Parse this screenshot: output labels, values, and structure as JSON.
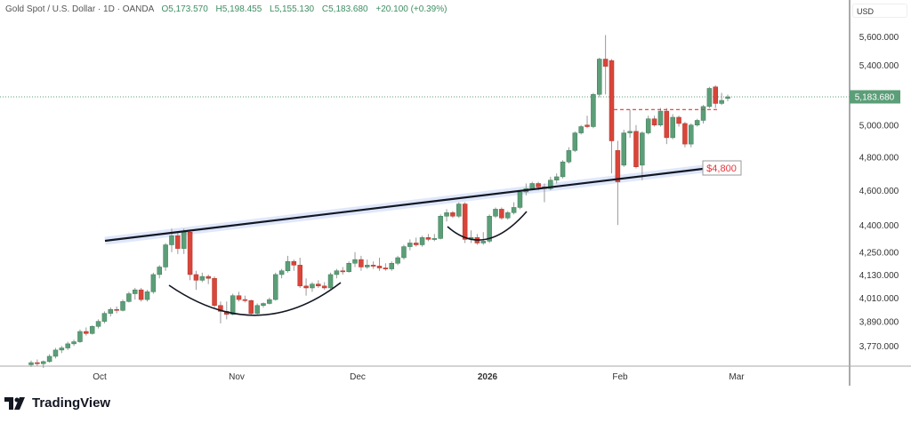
{
  "legend": {
    "symbol": "Gold Spot / U.S. Dollar · 1D · OANDA",
    "open": "O5,173.570",
    "high": "H5,198.455",
    "low": "L5,155.130",
    "close": "C5,183.680",
    "change": "+20.100 (+0.39%)"
  },
  "currency": "USD",
  "price_axis": [
    "5,600.000",
    "5,400.000",
    "5,000.000",
    "4,800.000",
    "4,600.000",
    "4,400.000",
    "4,250.000",
    "4,130.000",
    "4,010.000",
    "3,890.000",
    "3,770.000"
  ],
  "price_axis_values": [
    5600,
    5400,
    5000,
    4800,
    4600,
    4400,
    4250,
    4130,
    4010,
    3890,
    3770
  ],
  "current_price_label": "5,183.680",
  "current_price": 5183.68,
  "time_axis": [
    "Oct",
    "Nov",
    "Dec",
    "2026",
    "Feb",
    "Mar"
  ],
  "annotation_label": "$4,800",
  "resistance_level": 5100,
  "brand": "TradingView",
  "colors": {
    "up": "#5b9e78",
    "down": "#d9453a",
    "trendline": "#131722",
    "band": "#dfe7fb",
    "annotation": "#e8333a"
  },
  "chart_data": {
    "type": "candlestick",
    "title": "Gold Spot / U.S. Dollar · 1D · OANDA",
    "scale": "log",
    "ylim": [
      3680,
      5650
    ],
    "ohlc": [
      [
        3680,
        3700,
        3670,
        3690
      ],
      [
        3690,
        3705,
        3675,
        3685
      ],
      [
        3685,
        3700,
        3665,
        3695
      ],
      [
        3695,
        3730,
        3690,
        3720
      ],
      [
        3720,
        3760,
        3710,
        3750
      ],
      [
        3750,
        3770,
        3735,
        3760
      ],
      [
        3760,
        3790,
        3750,
        3780
      ],
      [
        3780,
        3800,
        3770,
        3790
      ],
      [
        3790,
        3850,
        3785,
        3840
      ],
      [
        3840,
        3860,
        3820,
        3830
      ],
      [
        3830,
        3870,
        3825,
        3865
      ],
      [
        3865,
        3900,
        3855,
        3890
      ],
      [
        3890,
        3940,
        3880,
        3930
      ],
      [
        3930,
        3960,
        3915,
        3950
      ],
      [
        3950,
        3965,
        3930,
        3945
      ],
      [
        3945,
        4000,
        3940,
        3990
      ],
      [
        3990,
        4040,
        3985,
        4030
      ],
      [
        4030,
        4060,
        4000,
        4050
      ],
      [
        4050,
        4060,
        3990,
        4000
      ],
      [
        4000,
        4050,
        3990,
        4040
      ],
      [
        4040,
        4140,
        4030,
        4130
      ],
      [
        4130,
        4180,
        4110,
        4170
      ],
      [
        4170,
        4300,
        4150,
        4290
      ],
      [
        4290,
        4380,
        4250,
        4340
      ],
      [
        4340,
        4360,
        4240,
        4270
      ],
      [
        4270,
        4380,
        4240,
        4360
      ],
      [
        4360,
        4370,
        4100,
        4130
      ],
      [
        4130,
        4150,
        4050,
        4100
      ],
      [
        4100,
        4140,
        4090,
        4120
      ],
      [
        4120,
        4130,
        4080,
        4110
      ],
      [
        4110,
        4120,
        3960,
        3970
      ],
      [
        3970,
        3990,
        3880,
        3940
      ],
      [
        3940,
        3990,
        3900,
        3925
      ],
      [
        3925,
        4030,
        3920,
        4020
      ],
      [
        4020,
        4040,
        3990,
        4000
      ],
      [
        4000,
        4020,
        3985,
        3995
      ],
      [
        3995,
        4000,
        3920,
        3930
      ],
      [
        3930,
        3980,
        3925,
        3970
      ],
      [
        3970,
        3985,
        3960,
        3980
      ],
      [
        3980,
        4010,
        3975,
        4000
      ],
      [
        4000,
        4140,
        3995,
        4130
      ],
      [
        4130,
        4160,
        4110,
        4150
      ],
      [
        4150,
        4230,
        4140,
        4200
      ],
      [
        4200,
        4210,
        4150,
        4180
      ],
      [
        4180,
        4220,
        4060,
        4070
      ],
      [
        4070,
        4110,
        4020,
        4060
      ],
      [
        4060,
        4090,
        4040,
        4080
      ],
      [
        4080,
        4100,
        4060,
        4070
      ],
      [
        4070,
        4090,
        4050,
        4060
      ],
      [
        4060,
        4140,
        4055,
        4130
      ],
      [
        4130,
        4160,
        4110,
        4150
      ],
      [
        4150,
        4170,
        4130,
        4145
      ],
      [
        4145,
        4200,
        4140,
        4190
      ],
      [
        4190,
        4250,
        4170,
        4210
      ],
      [
        4210,
        4230,
        4150,
        4170
      ],
      [
        4170,
        4210,
        4160,
        4180
      ],
      [
        4180,
        4200,
        4160,
        4175
      ],
      [
        4175,
        4220,
        4150,
        4165
      ],
      [
        4165,
        4190,
        4150,
        4160
      ],
      [
        4160,
        4200,
        4150,
        4190
      ],
      [
        4190,
        4230,
        4180,
        4220
      ],
      [
        4220,
        4290,
        4210,
        4280
      ],
      [
        4280,
        4320,
        4260,
        4300
      ],
      [
        4300,
        4330,
        4280,
        4290
      ],
      [
        4290,
        4340,
        4280,
        4330
      ],
      [
        4330,
        4350,
        4310,
        4320
      ],
      [
        4320,
        4350,
        4310,
        4325
      ],
      [
        4325,
        4460,
        4320,
        4450
      ],
      [
        4450,
        4490,
        4420,
        4470
      ],
      [
        4470,
        4480,
        4440,
        4450
      ],
      [
        4450,
        4530,
        4440,
        4520
      ],
      [
        4520,
        4530,
        4300,
        4320
      ],
      [
        4320,
        4370,
        4300,
        4330
      ],
      [
        4330,
        4350,
        4290,
        4300
      ],
      [
        4300,
        4360,
        4290,
        4310
      ],
      [
        4310,
        4460,
        4300,
        4450
      ],
      [
        4450,
        4500,
        4440,
        4490
      ],
      [
        4490,
        4500,
        4430,
        4440
      ],
      [
        4440,
        4480,
        4430,
        4470
      ],
      [
        4470,
        4530,
        4460,
        4500
      ],
      [
        4500,
        4600,
        4490,
        4590
      ],
      [
        4590,
        4640,
        4570,
        4610
      ],
      [
        4610,
        4650,
        4600,
        4640
      ],
      [
        4640,
        4650,
        4600,
        4620
      ],
      [
        4620,
        4640,
        4530,
        4610
      ],
      [
        4610,
        4680,
        4600,
        4660
      ],
      [
        4660,
        4700,
        4640,
        4680
      ],
      [
        4680,
        4780,
        4670,
        4770
      ],
      [
        4770,
        4860,
        4760,
        4840
      ],
      [
        4840,
        4960,
        4830,
        4950
      ],
      [
        4950,
        5000,
        4940,
        4990
      ],
      [
        5000,
        5060,
        4980,
        4990
      ],
      [
        4990,
        5210,
        4980,
        5200
      ],
      [
        5200,
        5450,
        5180,
        5440
      ],
      [
        5440,
        5610,
        5200,
        5390
      ],
      [
        5430,
        5440,
        4700,
        4900
      ],
      [
        4840,
        4900,
        4400,
        4650
      ],
      [
        4750,
        4970,
        4740,
        4950
      ],
      [
        4950,
        5100,
        4920,
        4960
      ],
      [
        4960,
        5000,
        4730,
        4740
      ],
      [
        4750,
        4960,
        4660,
        4950
      ],
      [
        4950,
        5060,
        4940,
        5040
      ],
      [
        5040,
        5060,
        4990,
        5000
      ],
      [
        5000,
        5110,
        4990,
        5090
      ],
      [
        5090,
        5110,
        4880,
        4920
      ],
      [
        4920,
        5070,
        4910,
        5050
      ],
      [
        5050,
        5060,
        4990,
        5010
      ],
      [
        5010,
        5020,
        4860,
        4880
      ],
      [
        4880,
        5010,
        4860,
        5000
      ],
      [
        5000,
        5040,
        4990,
        5030
      ],
      [
        5030,
        5130,
        5010,
        5120
      ],
      [
        5120,
        5250,
        5110,
        5240
      ],
      [
        5250,
        5260,
        5110,
        5140
      ],
      [
        5140,
        5210,
        5130,
        5160
      ],
      [
        5173.57,
        5198.455,
        5155.13,
        5183.68
      ]
    ]
  }
}
